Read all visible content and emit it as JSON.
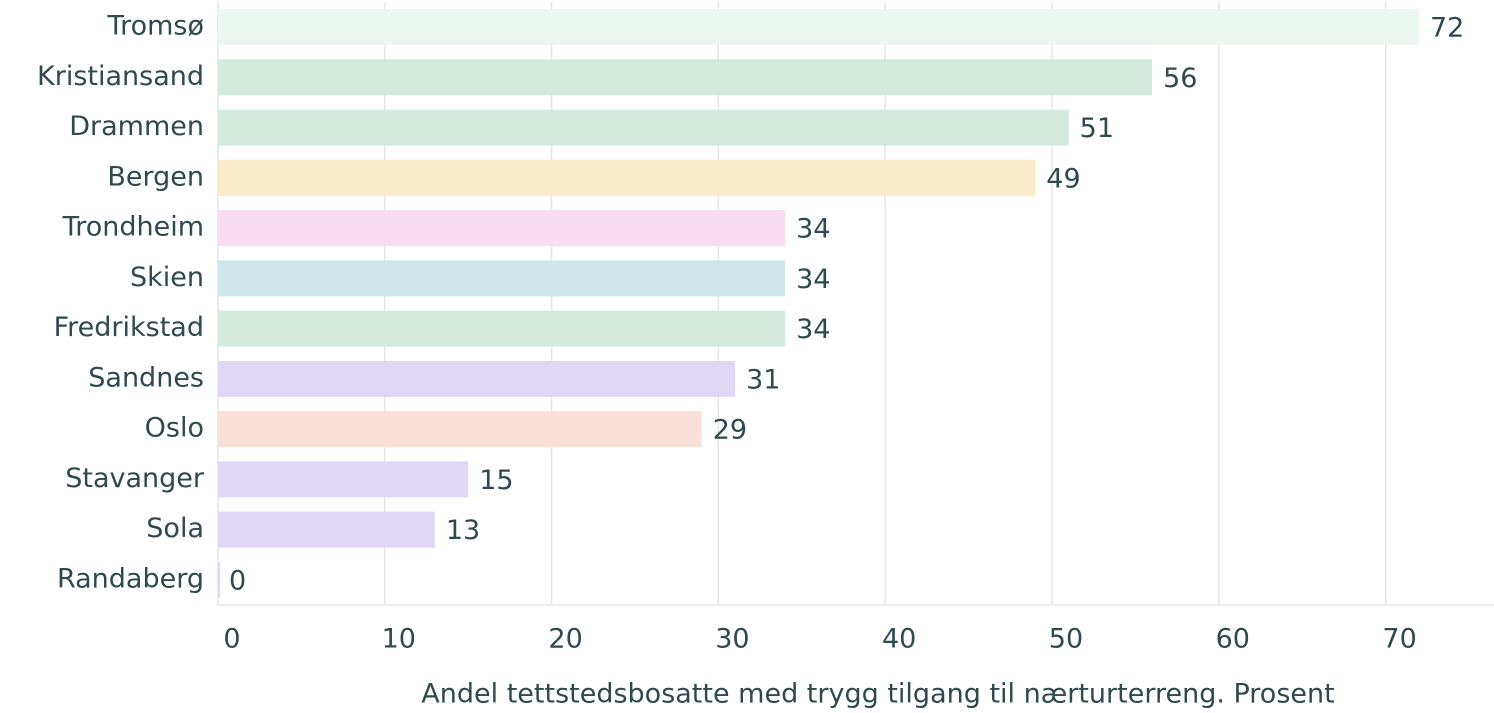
{
  "chart_data": {
    "type": "bar",
    "orientation": "horizontal",
    "x_label": "Andel tettstedsbosatte med trygg tilgang til nærturterreng. Prosent",
    "categories": [
      "Tromsø",
      "Kristiansand",
      "Drammen",
      "Bergen",
      "Trondheim",
      "Skien",
      "Fredrikstad",
      "Sandnes",
      "Oslo",
      "Stavanger",
      "Sola",
      "Randaberg"
    ],
    "values": [
      72,
      56,
      51,
      49,
      34,
      34,
      34,
      31,
      29,
      15,
      13,
      0
    ],
    "colors": [
      "#edf7f1",
      "#d2ebdc",
      "#d2ebdc",
      "#faecca",
      "#fadcf3",
      "#cde6ea",
      "#d2ebdc",
      "#e0d6f5",
      "#fae0d8",
      "#e0d6f5",
      "#e0d6f5",
      "#e0d6f5"
    ],
    "xlim": [
      0,
      76.5
    ],
    "xticks": [
      0,
      10,
      20,
      30,
      40,
      50,
      60,
      70
    ],
    "grid": true
  }
}
